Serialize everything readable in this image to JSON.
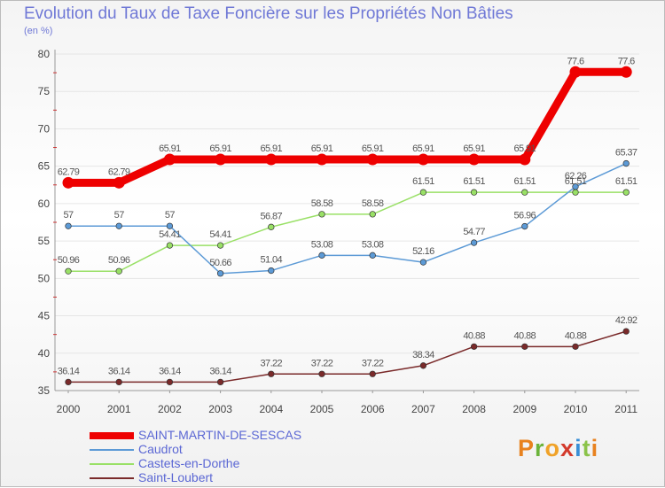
{
  "header": {
    "title": "Evolution du Taux de Taxe Foncière sur les Propriétés Non Bâties",
    "unit": "(en %)"
  },
  "chart_data": {
    "type": "line",
    "title": "Evolution du Taux de Taxe Foncière sur les Propriétés Non Bâties",
    "ylabel": "(en %)",
    "xlabel": "",
    "ylim": [
      35,
      80
    ],
    "yticks": [
      35,
      40,
      45,
      50,
      55,
      60,
      65,
      70,
      75,
      80
    ],
    "x": [
      "2000",
      "2001",
      "2002",
      "2003",
      "2004",
      "2005",
      "2006",
      "2007",
      "2008",
      "2009",
      "2010",
      "2011"
    ],
    "series": [
      {
        "name": "SAINT-MARTIN-DE-SESCAS",
        "color": "#ee0000",
        "values": [
          62.79,
          62.79,
          65.91,
          65.91,
          65.91,
          65.91,
          65.91,
          65.91,
          65.91,
          65.91,
          77.6,
          77.6
        ],
        "labels": [
          "62.79",
          "62.79",
          "65.91",
          "65.91",
          "65.91",
          "65.91",
          "65.91",
          "65.91",
          "65.91",
          "65.91",
          "77.6",
          "77.6"
        ]
      },
      {
        "name": "Caudrot",
        "color": "#5c9ad6",
        "values": [
          57,
          57,
          57,
          50.66,
          51.04,
          53.08,
          53.08,
          52.16,
          54.77,
          56.96,
          62.26,
          65.37
        ],
        "labels": [
          "57",
          "57",
          "57",
          "50.66",
          "51.04",
          "53.08",
          "53.08",
          "52.16",
          "54.77",
          "56.96",
          "62.26",
          "65.37"
        ]
      },
      {
        "name": "Castets-en-Dorthe",
        "color": "#99e066",
        "values": [
          50.96,
          50.96,
          54.41,
          54.41,
          56.87,
          58.58,
          58.58,
          61.51,
          61.51,
          61.51,
          61.51,
          61.51
        ],
        "labels": [
          "50.96",
          "50.96",
          "54.41",
          "54.41",
          "56.87",
          "58.58",
          "58.58",
          "61.51",
          "61.51",
          "61.51",
          "61.51",
          "61.51"
        ]
      },
      {
        "name": "Saint-Loubert",
        "color": "#7a2a2a",
        "values": [
          36.14,
          36.14,
          36.14,
          36.14,
          37.22,
          37.22,
          37.22,
          38.34,
          40.88,
          40.88,
          40.88,
          42.92
        ],
        "labels": [
          "36.14",
          "36.14",
          "36.14",
          "36.14",
          "37.22",
          "37.22",
          "37.22",
          "38.34",
          "40.88",
          "40.88",
          "40.88",
          "42.92"
        ]
      }
    ]
  },
  "legend": {
    "items": [
      "SAINT-MARTIN-DE-SESCAS",
      "Caudrot",
      "Castets-en-Dorthe",
      "Saint-Loubert"
    ]
  },
  "logo": {
    "text": "Proxiti"
  }
}
